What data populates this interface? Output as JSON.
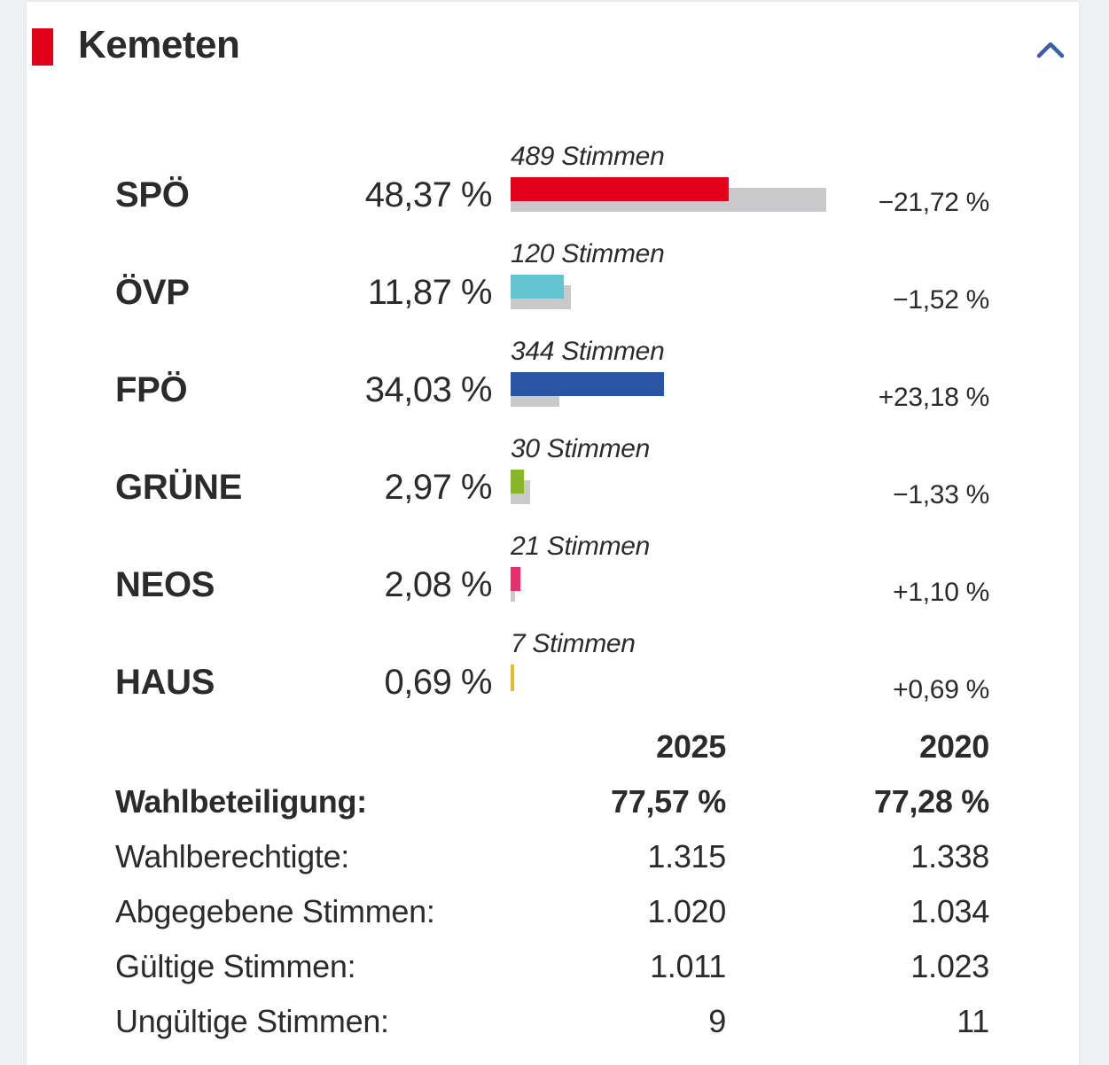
{
  "header": {
    "title": "Kemeten",
    "marker_color": "#e2001a",
    "collapse_icon": "chevron-up-icon",
    "accent_color": "#3a5fa8"
  },
  "results": [
    {
      "party": "SPÖ",
      "percent": "48,37 %",
      "votes": "489 Stimmen",
      "change": "−21,72 %",
      "share": 48.37,
      "prev_share": 70.09,
      "color": "#e2001a"
    },
    {
      "party": "ÖVP",
      "percent": "11,87 %",
      "votes": "120 Stimmen",
      "change": "−1,52 %",
      "share": 11.87,
      "prev_share": 13.39,
      "color": "#63c3d1"
    },
    {
      "party": "FPÖ",
      "percent": "34,03 %",
      "votes": "344 Stimmen",
      "change": "+23,18 %",
      "share": 34.03,
      "prev_share": 10.85,
      "color": "#2a55a5"
    },
    {
      "party": "GRÜNE",
      "percent": "2,97 %",
      "votes": "30 Stimmen",
      "change": "−1,33 %",
      "share": 2.97,
      "prev_share": 4.3,
      "color": "#88b626"
    },
    {
      "party": "NEOS",
      "percent": "2,08 %",
      "votes": "21 Stimmen",
      "change": "+1,10 %",
      "share": 2.08,
      "prev_share": 0.98,
      "color": "#e3316f"
    },
    {
      "party": "HAUS",
      "percent": "0,69 %",
      "votes": "7 Stimmen",
      "change": "+0,69 %",
      "share": 0.69,
      "prev_share": 0,
      "color": "#e8b92a"
    }
  ],
  "stats": {
    "year_current": "2025",
    "year_previous": "2020",
    "rows": [
      {
        "label": "Wahlbeteiligung:",
        "current": "77,57 %",
        "previous": "77,28 %",
        "bold": true
      },
      {
        "label": "Wahlberechtigte:",
        "current": "1.315",
        "previous": "1.338",
        "bold": false
      },
      {
        "label": "Abgegebene Stimmen:",
        "current": "1.020",
        "previous": "1.034",
        "bold": false
      },
      {
        "label": "Gültige Stimmen:",
        "current": "1.011",
        "previous": "1.023",
        "bold": false
      },
      {
        "label": "Ungültige Stimmen:",
        "current": "9",
        "previous": "11",
        "bold": false
      }
    ]
  }
}
